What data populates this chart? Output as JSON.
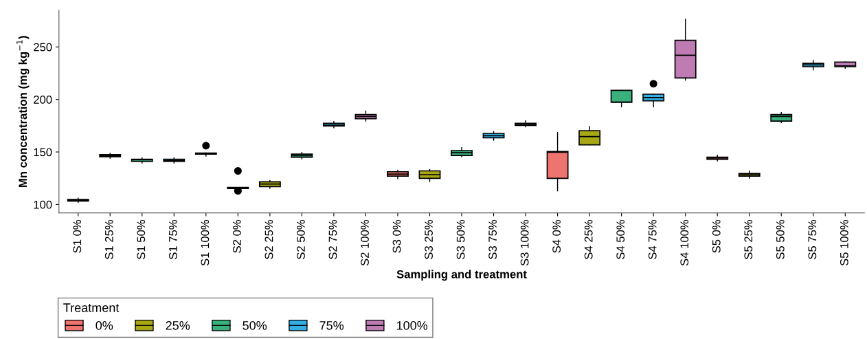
{
  "chart_data": {
    "type": "box",
    "xlabel": "Sampling and treatment",
    "ylabel": "Mn concentration (mg kg$^{−1}$)",
    "legend_title": "Treatment",
    "legend": "bottom left",
    "grid": false,
    "ylim": [
      92,
      285
    ],
    "yticks": [
      100,
      150,
      200,
      250
    ],
    "categories": [
      "S1 0%",
      "S1 25%",
      "S1 50%",
      "S1 75%",
      "S1 100%",
      "S2 0%",
      "S2 25%",
      "S2 50%",
      "S2 75%",
      "S2 100%",
      "S3 0%",
      "S3 25%",
      "S3 50%",
      "S3 75%",
      "S3 100%",
      "S4 0%",
      "S4 25%",
      "S4 50%",
      "S4 75%",
      "S4 100%",
      "S5 0%",
      "S5 25%",
      "S5 50%",
      "S5 75%",
      "S5 100%"
    ],
    "series": [
      {
        "name": "0%",
        "color": "#ee7470",
        "boxes": [
          {
            "low": 102,
            "q1": 103.3,
            "median": 104,
            "q3": 104.7,
            "high": 106
          },
          null,
          null,
          null,
          null,
          {
            "low": 115.2,
            "q1": 115.2,
            "median": 115.7,
            "q3": 116.2,
            "high": 116.2,
            "outliers": [
              132,
              113
            ]
          },
          null,
          null,
          null,
          null,
          {
            "low": 124.4,
            "q1": 127,
            "median": 129,
            "q3": 131.2,
            "high": 132.7
          },
          null,
          null,
          null,
          null,
          {
            "low": 112.9,
            "q1": 124.9,
            "median": 149.8,
            "q3": 150.4,
            "high": 168.6
          },
          null,
          null,
          null,
          null,
          {
            "low": 141.5,
            "q1": 143,
            "median": 144.1,
            "q3": 145,
            "high": 147
          },
          null,
          null,
          null,
          null
        ]
      },
      {
        "name": "25%",
        "color": "#a8a817",
        "boxes": [
          null,
          {
            "low": 144,
            "q1": 145.5,
            "median": 146.5,
            "q3": 147.5,
            "high": 148.8
          },
          null,
          null,
          null,
          null,
          {
            "low": 115.5,
            "q1": 117,
            "median": 119.5,
            "q3": 121.6,
            "high": 122.8
          },
          null,
          null,
          null,
          null,
          {
            "low": 121.8,
            "q1": 124.9,
            "median": 128.4,
            "q3": 132,
            "high": 133.2
          },
          null,
          null,
          null,
          null,
          {
            "low": 156.8,
            "q1": 156.8,
            "median": 164.6,
            "q3": 170.3,
            "high": 174.2
          },
          null,
          null,
          null,
          null,
          {
            "low": 124.9,
            "q1": 127,
            "median": 128.4,
            "q3": 129.5,
            "high": 131.9
          },
          null,
          null,
          null
        ]
      },
      {
        "name": "50%",
        "color": "#3ab17c",
        "boxes": [
          null,
          null,
          {
            "low": 139.5,
            "q1": 141,
            "median": 142.5,
            "q3": 143,
            "high": 144.5
          },
          null,
          null,
          null,
          null,
          {
            "low": 143.5,
            "q1": 145,
            "median": 146.5,
            "q3": 148,
            "high": 149.5
          },
          null,
          null,
          null,
          null,
          {
            "low": 145.4,
            "q1": 146.7,
            "median": 149.3,
            "q3": 151.3,
            "high": 154.2
          },
          null,
          null,
          null,
          null,
          {
            "low": 193,
            "q1": 197.4,
            "median": 197.4,
            "q3": 208.7,
            "high": 208.7
          },
          null,
          null,
          null,
          null,
          {
            "low": 177.9,
            "q1": 179.4,
            "median": 183.8,
            "q3": 185.6,
            "high": 187.6
          },
          null,
          null
        ]
      },
      {
        "name": "75%",
        "color": "#34aee3",
        "boxes": [
          null,
          null,
          null,
          {
            "low": 139.5,
            "q1": 141,
            "median": 142,
            "q3": 143,
            "high": 144.5
          },
          null,
          null,
          null,
          null,
          {
            "low": 173,
            "q1": 174.7,
            "median": 175.5,
            "q3": 177.3,
            "high": 179
          },
          null,
          null,
          null,
          null,
          {
            "low": 161.1,
            "q1": 163.5,
            "median": 165.5,
            "q3": 167.7,
            "high": 169.4
          },
          null,
          null,
          null,
          null,
          {
            "low": 193,
            "q1": 198.7,
            "median": 201.8,
            "q3": 205,
            "high": 205,
            "outliers": [
              215
            ]
          },
          null,
          null,
          null,
          null,
          {
            "low": 228.2,
            "q1": 231.2,
            "median": 232.9,
            "q3": 234.4,
            "high": 237.1
          },
          null
        ]
      },
      {
        "name": "100%",
        "color": "#be7cb3",
        "boxes": [
          null,
          null,
          null,
          null,
          {
            "low": 146,
            "q1": 148,
            "median": 148.5,
            "q3": 149,
            "high": 149,
            "outliers": [
              156
            ]
          },
          null,
          null,
          null,
          null,
          {
            "low": 179.4,
            "q1": 181.7,
            "median": 183.8,
            "q3": 185.6,
            "high": 189
          },
          null,
          null,
          null,
          null,
          {
            "low": 173.8,
            "q1": 175.3,
            "median": 176.4,
            "q3": 177.3,
            "high": 179.9
          },
          null,
          null,
          null,
          null,
          {
            "low": 218.3,
            "q1": 220.5,
            "median": 242.1,
            "q3": 256.3,
            "high": 276.4
          },
          null,
          null,
          null,
          null,
          {
            "low": 229.6,
            "q1": 231.2,
            "median": 232,
            "q3": 235.6,
            "high": 235.6
          }
        ]
      }
    ]
  }
}
